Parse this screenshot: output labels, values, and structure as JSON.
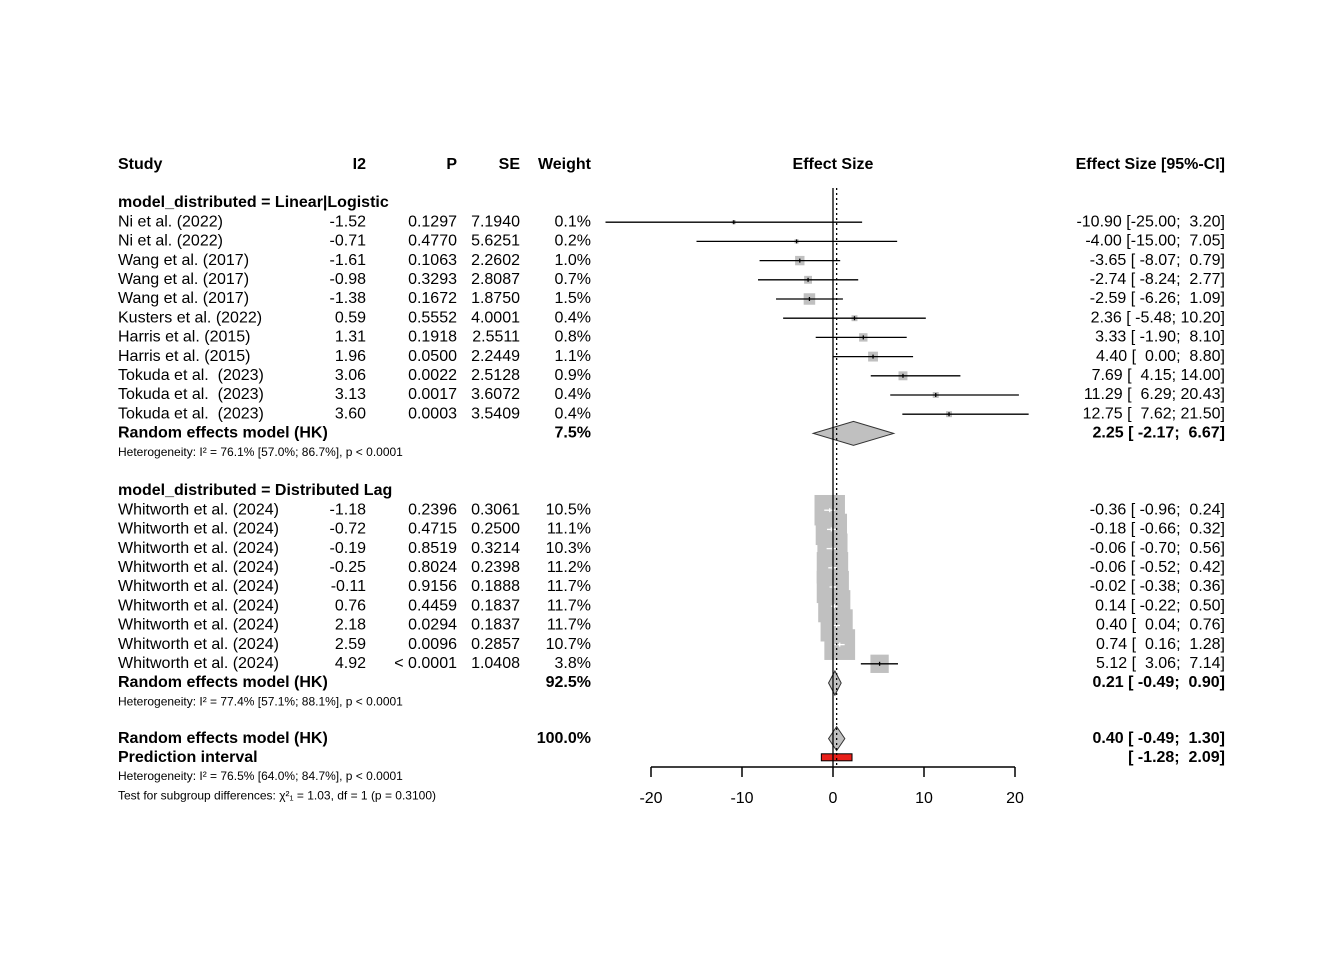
{
  "chart_data": {
    "type": "forest",
    "title": "",
    "columns": {
      "study": "Study",
      "i2": "I2",
      "p": "P",
      "se": "SE",
      "weight": "Weight",
      "effect": "Effect Size",
      "ci": "Effect Size [95%-CI]"
    },
    "xaxis": {
      "ticks": [
        -20,
        -10,
        0,
        10,
        20
      ],
      "tick_labels": [
        "-20",
        "-10",
        "0",
        "10",
        "20"
      ],
      "xlim": [
        -20,
        20
      ],
      "reference_line": 0
    },
    "groups": [
      {
        "label": "model_distributed = Linear|Logistic",
        "studies": [
          {
            "study": "Ni et al. (2022)",
            "i2": "-1.52",
            "p": "0.1297",
            "se": "7.1940",
            "weight": "0.1%",
            "ci_text": "-10.90 [-25.00;  3.20]",
            "est": -10.9,
            "lo": -25.0,
            "hi": 3.2,
            "w": 0.1
          },
          {
            "study": "Ni et al. (2022)",
            "i2": "-0.71",
            "p": "0.4770",
            "se": "5.6251",
            "weight": "0.2%",
            "ci_text": "-4.00 [-15.00;  7.05]",
            "est": -4.0,
            "lo": -15.0,
            "hi": 7.05,
            "w": 0.2
          },
          {
            "study": "Wang et al. (2017)",
            "i2": "-1.61",
            "p": "0.1063",
            "se": "2.2602",
            "weight": "1.0%",
            "ci_text": "-3.65 [ -8.07;  0.79]",
            "est": -3.65,
            "lo": -8.07,
            "hi": 0.79,
            "w": 1.0
          },
          {
            "study": "Wang et al. (2017)",
            "i2": "-0.98",
            "p": "0.3293",
            "se": "2.8087",
            "weight": "0.7%",
            "ci_text": "-2.74 [ -8.24;  2.77]",
            "est": -2.74,
            "lo": -8.24,
            "hi": 2.77,
            "w": 0.7
          },
          {
            "study": "Wang et al. (2017)",
            "i2": "-1.38",
            "p": "0.1672",
            "se": "1.8750",
            "weight": "1.5%",
            "ci_text": "-2.59 [ -6.26;  1.09]",
            "est": -2.59,
            "lo": -6.26,
            "hi": 1.09,
            "w": 1.5
          },
          {
            "study": "Kusters et al. (2022)",
            "i2": "0.59",
            "p": "0.5552",
            "se": "4.0001",
            "weight": "0.4%",
            "ci_text": "2.36 [ -5.48; 10.20]",
            "est": 2.36,
            "lo": -5.48,
            "hi": 10.2,
            "w": 0.4
          },
          {
            "study": "Harris et al. (2015)",
            "i2": "1.31",
            "p": "0.1918",
            "se": "2.5511",
            "weight": "0.8%",
            "ci_text": "3.33 [ -1.90;  8.10]",
            "est": 3.33,
            "lo": -1.9,
            "hi": 8.1,
            "w": 0.8
          },
          {
            "study": "Harris et al. (2015)",
            "i2": "1.96",
            "p": "0.0500",
            "se": "2.2449",
            "weight": "1.1%",
            "ci_text": "4.40 [  0.00;  8.80]",
            "est": 4.4,
            "lo": 0.0,
            "hi": 8.8,
            "w": 1.1
          },
          {
            "study": "Tokuda et al.  (2023)",
            "i2": "3.06",
            "p": "0.0022",
            "se": "2.5128",
            "weight": "0.9%",
            "ci_text": "7.69 [  4.15; 14.00]",
            "est": 7.69,
            "lo": 4.15,
            "hi": 14.0,
            "w": 0.9
          },
          {
            "study": "Tokuda et al.  (2023)",
            "i2": "3.13",
            "p": "0.0017",
            "se": "3.6072",
            "weight": "0.4%",
            "ci_text": "11.29 [  6.29; 20.43]",
            "est": 11.29,
            "lo": 6.29,
            "hi": 20.43,
            "w": 0.4
          },
          {
            "study": "Tokuda et al.  (2023)",
            "i2": "3.60",
            "p": "0.0003",
            "se": "3.5409",
            "weight": "0.4%",
            "ci_text": "12.75 [  7.62; 21.50]",
            "est": 12.75,
            "lo": 7.62,
            "hi": 21.5,
            "w": 0.4
          }
        ],
        "summary": {
          "label": "Random effects model (HK)",
          "weight": "7.5%",
          "ci_text": "2.25 [ -2.17;  6.67]",
          "est": 2.25,
          "lo": -2.17,
          "hi": 6.67
        },
        "heterogeneity": "Heterogeneity: I² = 76.1% [57.0%; 86.7%], p < 0.0001"
      },
      {
        "label": "model_distributed = Distributed Lag",
        "studies": [
          {
            "study": "Whitworth et al. (2024)",
            "i2": "-1.18",
            "p": "0.2396",
            "se": "0.3061",
            "weight": "10.5%",
            "ci_text": "-0.36 [ -0.96;  0.24]",
            "est": -0.36,
            "lo": -0.96,
            "hi": 0.24,
            "w": 10.5
          },
          {
            "study": "Whitworth et al. (2024)",
            "i2": "-0.72",
            "p": "0.4715",
            "se": "0.2500",
            "weight": "11.1%",
            "ci_text": "-0.18 [ -0.66;  0.32]",
            "est": -0.18,
            "lo": -0.66,
            "hi": 0.32,
            "w": 11.1
          },
          {
            "study": "Whitworth et al. (2024)",
            "i2": "-0.19",
            "p": "0.8519",
            "se": "0.3214",
            "weight": "10.3%",
            "ci_text": "-0.06 [ -0.70;  0.56]",
            "est": -0.06,
            "lo": -0.7,
            "hi": 0.56,
            "w": 10.3
          },
          {
            "study": "Whitworth et al. (2024)",
            "i2": "-0.25",
            "p": "0.8024",
            "se": "0.2398",
            "weight": "11.2%",
            "ci_text": "-0.06 [ -0.52;  0.42]",
            "est": -0.06,
            "lo": -0.52,
            "hi": 0.42,
            "w": 11.2
          },
          {
            "study": "Whitworth et al. (2024)",
            "i2": "-0.11",
            "p": "0.9156",
            "se": "0.1888",
            "weight": "11.7%",
            "ci_text": "-0.02 [ -0.38;  0.36]",
            "est": -0.02,
            "lo": -0.38,
            "hi": 0.36,
            "w": 11.7
          },
          {
            "study": "Whitworth et al. (2024)",
            "i2": "0.76",
            "p": "0.4459",
            "se": "0.1837",
            "weight": "11.7%",
            "ci_text": "0.14 [ -0.22;  0.50]",
            "est": 0.14,
            "lo": -0.22,
            "hi": 0.5,
            "w": 11.7
          },
          {
            "study": "Whitworth et al. (2024)",
            "i2": "2.18",
            "p": "0.0294",
            "se": "0.1837",
            "weight": "11.7%",
            "ci_text": "0.40 [  0.04;  0.76]",
            "est": 0.4,
            "lo": 0.04,
            "hi": 0.76,
            "w": 11.7
          },
          {
            "study": "Whitworth et al. (2024)",
            "i2": "2.59",
            "p": "0.0096",
            "se": "0.2857",
            "weight": "10.7%",
            "ci_text": "0.74 [  0.16;  1.28]",
            "est": 0.74,
            "lo": 0.16,
            "hi": 1.28,
            "w": 10.7
          },
          {
            "study": "Whitworth et al. (2024)",
            "i2": "4.92",
            "p": "< 0.0001",
            "se": "1.0408",
            "weight": "3.8%",
            "ci_text": "5.12 [  3.06;  7.14]",
            "est": 5.12,
            "lo": 3.06,
            "hi": 7.14,
            "w": 3.8
          }
        ],
        "summary": {
          "label": "Random effects model (HK)",
          "weight": "92.5%",
          "ci_text": "0.21 [ -0.49;  0.90]",
          "est": 0.21,
          "lo": -0.49,
          "hi": 0.9
        },
        "heterogeneity": "Heterogeneity: I² = 77.4% [57.1%; 88.1%], p < 0.0001"
      }
    ],
    "overall": {
      "label": "Random effects model (HK)",
      "weight": "100.0%",
      "ci_text": "0.40 [ -0.49;  1.30]",
      "est": 0.4,
      "lo": -0.49,
      "hi": 1.3,
      "prediction_label": "Prediction interval",
      "prediction_ci_text": "[ -1.28;  2.09]",
      "pred_lo": -1.28,
      "pred_hi": 2.09,
      "heterogeneity": "Heterogeneity: I² = 76.5% [64.0%; 84.7%], p < 0.0001",
      "subgroup_test": "Test for subgroup differences: χ²₁ = 1.03, df = 1 (p = 0.3100)"
    },
    "colors": {
      "box": "#c0c0c0",
      "diamond_fill": "#c0c0c0",
      "prediction_fill": "#e8201a",
      "line": "#000000"
    }
  }
}
